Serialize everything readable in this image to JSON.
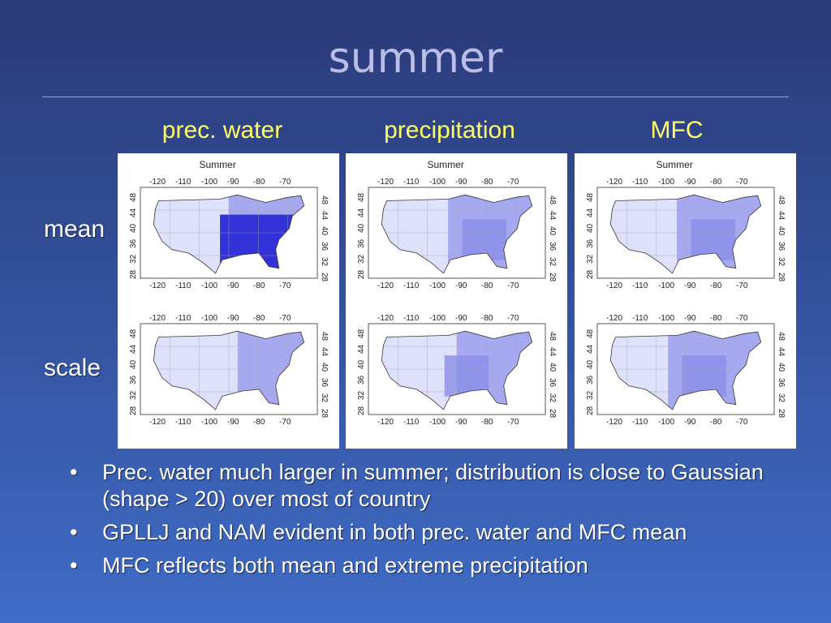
{
  "slide": {
    "title": "summer",
    "columns": [
      "prec. water",
      "precipitation",
      "MFC"
    ],
    "rows": [
      "mean",
      "scale"
    ],
    "panel_title": "Summer",
    "lon_ticks": [
      "-120",
      "-110",
      "-100",
      "-90",
      "-80",
      "-70"
    ],
    "lat_ticks": [
      "48",
      "44",
      "40",
      "36",
      "32",
      "28"
    ],
    "bullets": [
      "Prec. water much larger in summer; distribution is close to Gaussian (shape > 20) over most of country",
      "GPLLJ and NAM evident in both prec. water and MFC mean",
      "MFC reflects both mean and extreme precipitation"
    ],
    "bullet_symbol": "•"
  },
  "colors": {
    "heading": "#ffff66",
    "map_light": "#dfe0fb",
    "map_mid": "#a7a9f0",
    "map_dark": "#3232d8"
  }
}
